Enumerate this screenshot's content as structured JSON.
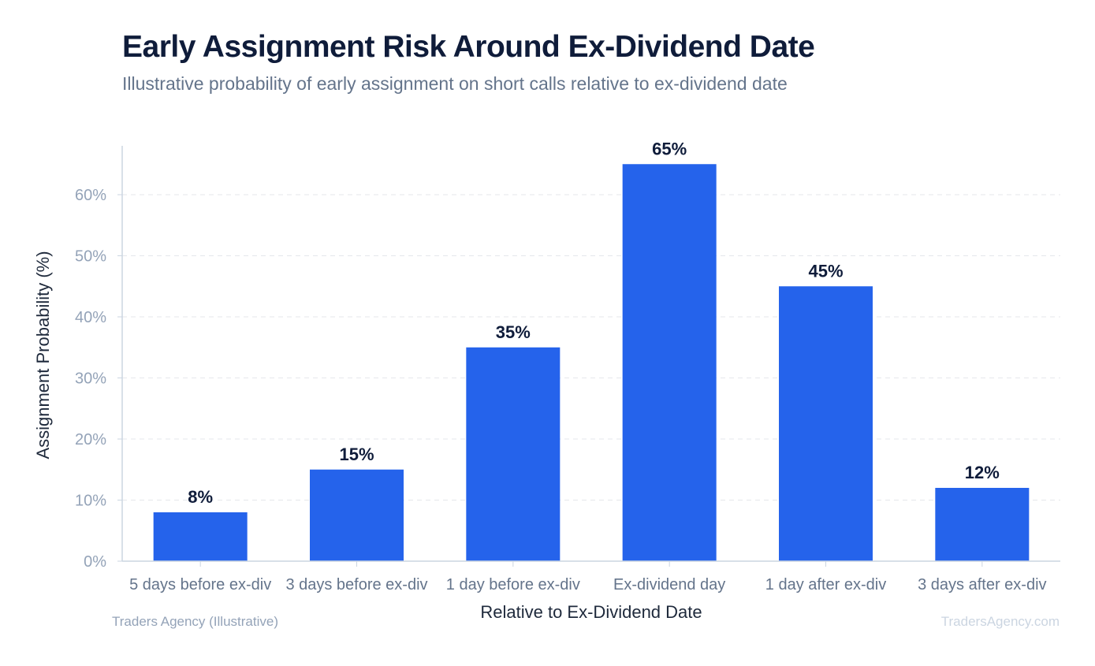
{
  "header": {
    "title": "Early Assignment Risk Around Ex-Dividend Date",
    "subtitle": "Illustrative probability of early assignment on short calls relative to ex-dividend date"
  },
  "footer": {
    "source": "Traders Agency (Illustrative)",
    "brand": "TradersAgency.com"
  },
  "chart_data": {
    "type": "bar",
    "categories": [
      "5 days before ex-div",
      "3 days before ex-div",
      "1 day before ex-div",
      "Ex-dividend day",
      "1 day after ex-div",
      "3 days after ex-div"
    ],
    "values": [
      8,
      15,
      35,
      65,
      45,
      12
    ],
    "data_labels": [
      "8%",
      "15%",
      "35%",
      "65%",
      "45%",
      "12%"
    ],
    "xlabel": "Relative to Ex-Dividend Date",
    "ylabel": "Assignment Probability (%)",
    "ylim": [
      0,
      68
    ],
    "yticks": [
      0,
      10,
      20,
      30,
      40,
      50,
      60
    ],
    "ytick_labels": [
      "0%",
      "10%",
      "20%",
      "30%",
      "40%",
      "50%",
      "60%"
    ],
    "grid": "horizontal-dashed",
    "colors": {
      "bar": "#2563eb",
      "grid": "#e5e7eb",
      "axis": "#cbd5e1",
      "tick_label": "#94a3b8",
      "category_label": "#64748b",
      "data_label": "#0f1c3a",
      "axis_title": "#1e293b"
    }
  }
}
